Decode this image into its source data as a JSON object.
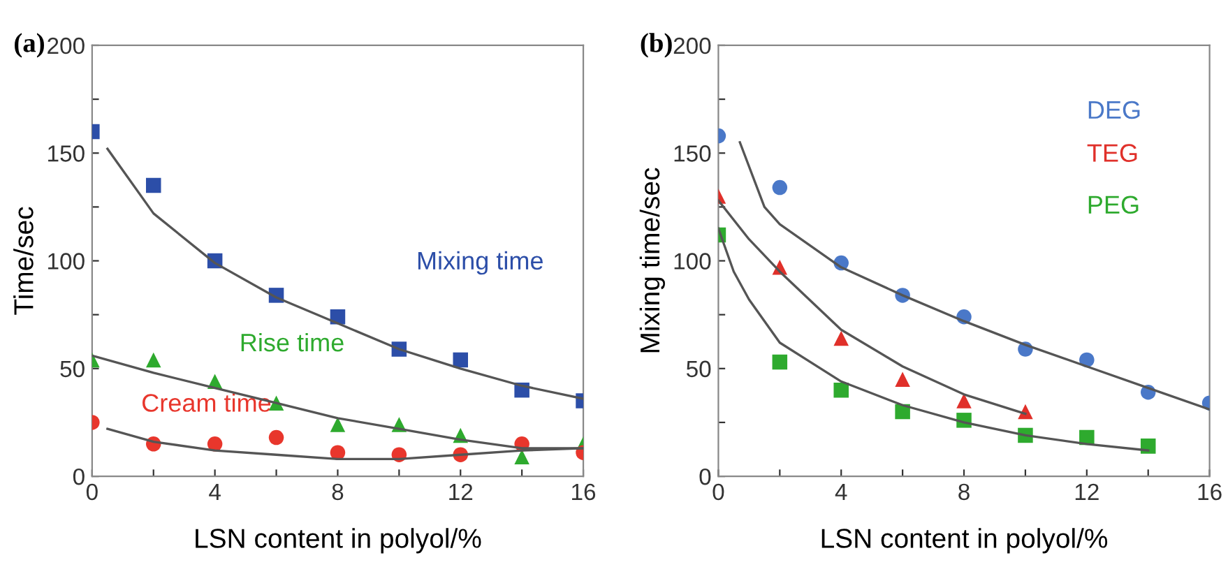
{
  "chart_data": [
    {
      "type": "scatter",
      "annotations": [
        "(a)"
      ],
      "xlabel": "LSN content in polyol/%",
      "ylabel": "Time/sec",
      "xlim": [
        0,
        16
      ],
      "ylim": [
        0,
        200
      ],
      "xticks": [
        0,
        {
          "value": 2,
          "label": null
        },
        4,
        {
          "value": 6,
          "label": null
        },
        8,
        {
          "value": 10,
          "label": null
        },
        12,
        {
          "value": 14,
          "label": null
        },
        16
      ],
      "yticks": [
        0,
        {
          "value": 25,
          "label": null
        },
        50,
        {
          "value": 75,
          "label": null
        },
        100,
        {
          "value": 125,
          "label": null
        },
        150,
        {
          "value": 175,
          "label": null
        },
        200
      ],
      "grid": false,
      "legend": false,
      "series": [
        {
          "name": "Mixing time",
          "color": "#2c4ea8",
          "marker": "square",
          "x": [
            0,
            2,
            4,
            6,
            8,
            10,
            12,
            14,
            16
          ],
          "values": [
            160,
            135,
            100,
            84,
            74,
            59,
            54,
            40,
            35
          ]
        },
        {
          "name": "Rise time",
          "color": "#2eaa2e",
          "marker": "triangle",
          "x": [
            0,
            2,
            4,
            6,
            8,
            10,
            12,
            14,
            16
          ],
          "values": [
            54,
            54,
            44,
            34,
            24,
            24,
            19,
            9,
            15
          ]
        },
        {
          "name": "Cream time",
          "color": "#e8362c",
          "marker": "circle",
          "x": [
            0,
            2,
            4,
            6,
            8,
            10,
            12,
            14,
            16
          ],
          "values": [
            25,
            15,
            15,
            18,
            11,
            10,
            10,
            15,
            11
          ]
        },
        {
          "type": "line",
          "color": "#555555",
          "x": [
            0.5,
            2,
            4,
            6,
            8,
            10,
            12,
            14,
            16
          ],
          "values": [
            152,
            122,
            99,
            83,
            71,
            59,
            50,
            42,
            36
          ]
        },
        {
          "type": "line",
          "color": "#555555",
          "x": [
            0,
            2,
            4,
            6,
            8,
            10,
            12,
            14,
            16
          ],
          "values": [
            56,
            48,
            41,
            34,
            27,
            22,
            17,
            13,
            13
          ]
        },
        {
          "type": "line",
          "color": "#555555",
          "x": [
            0.5,
            2,
            4,
            6,
            8,
            10,
            12,
            14,
            16
          ],
          "values": [
            22,
            16,
            12,
            10,
            8,
            8,
            10,
            12,
            13
          ]
        }
      ]
    },
    {
      "type": "scatter",
      "annotations": [
        "(b)"
      ],
      "xlabel": "LSN content in polyol/%",
      "ylabel": "Mixing time/sec",
      "xlim": [
        0,
        16
      ],
      "ylim": [
        0,
        200
      ],
      "xticks": [
        0,
        {
          "value": 2,
          "label": null
        },
        4,
        {
          "value": 6,
          "label": null
        },
        8,
        {
          "value": 10,
          "label": null
        },
        12,
        {
          "value": 14,
          "label": null
        },
        16
      ],
      "yticks": [
        0,
        {
          "value": 25,
          "label": null
        },
        50,
        {
          "value": 75,
          "label": null
        },
        100,
        {
          "value": 125,
          "label": null
        },
        150,
        {
          "value": 175,
          "label": null
        },
        200
      ],
      "grid": false,
      "legend": false,
      "series": [
        {
          "name": "DEG",
          "color": "#4a78c8",
          "marker": "circle",
          "x": [
            0,
            2,
            4,
            6,
            8,
            10,
            12,
            14,
            16
          ],
          "values": [
            158,
            134,
            99,
            84,
            74,
            59,
            54,
            39,
            34
          ]
        },
        {
          "name": "TEG",
          "color": "#e0302a",
          "marker": "triangle",
          "x": [
            0,
            2,
            4,
            6,
            8,
            10
          ],
          "values": [
            130,
            97,
            64,
            45,
            35,
            30
          ]
        },
        {
          "name": "PEG",
          "color": "#2eaa2e",
          "marker": "square",
          "x": [
            0,
            2,
            4,
            6,
            8,
            10,
            12,
            14
          ],
          "values": [
            112,
            53,
            40,
            30,
            26,
            19,
            18,
            14
          ]
        },
        {
          "type": "line",
          "color": "#555555",
          "x": [
            0.7,
            1.5,
            2,
            4,
            6,
            8,
            10,
            12,
            14,
            16
          ],
          "values": [
            155,
            125,
            117,
            97,
            84,
            72,
            61,
            51,
            41,
            31
          ]
        },
        {
          "type": "line",
          "color": "#555555",
          "x": [
            0,
            1,
            2,
            4,
            6,
            8,
            10
          ],
          "values": [
            128,
            110,
            95,
            68,
            51,
            38,
            29
          ]
        },
        {
          "type": "line",
          "color": "#555555",
          "x": [
            0,
            0.5,
            1,
            2,
            4,
            6,
            8,
            10,
            12,
            14
          ],
          "values": [
            115,
            95,
            82,
            62,
            44,
            33,
            25,
            19,
            15,
            12
          ]
        }
      ]
    }
  ]
}
